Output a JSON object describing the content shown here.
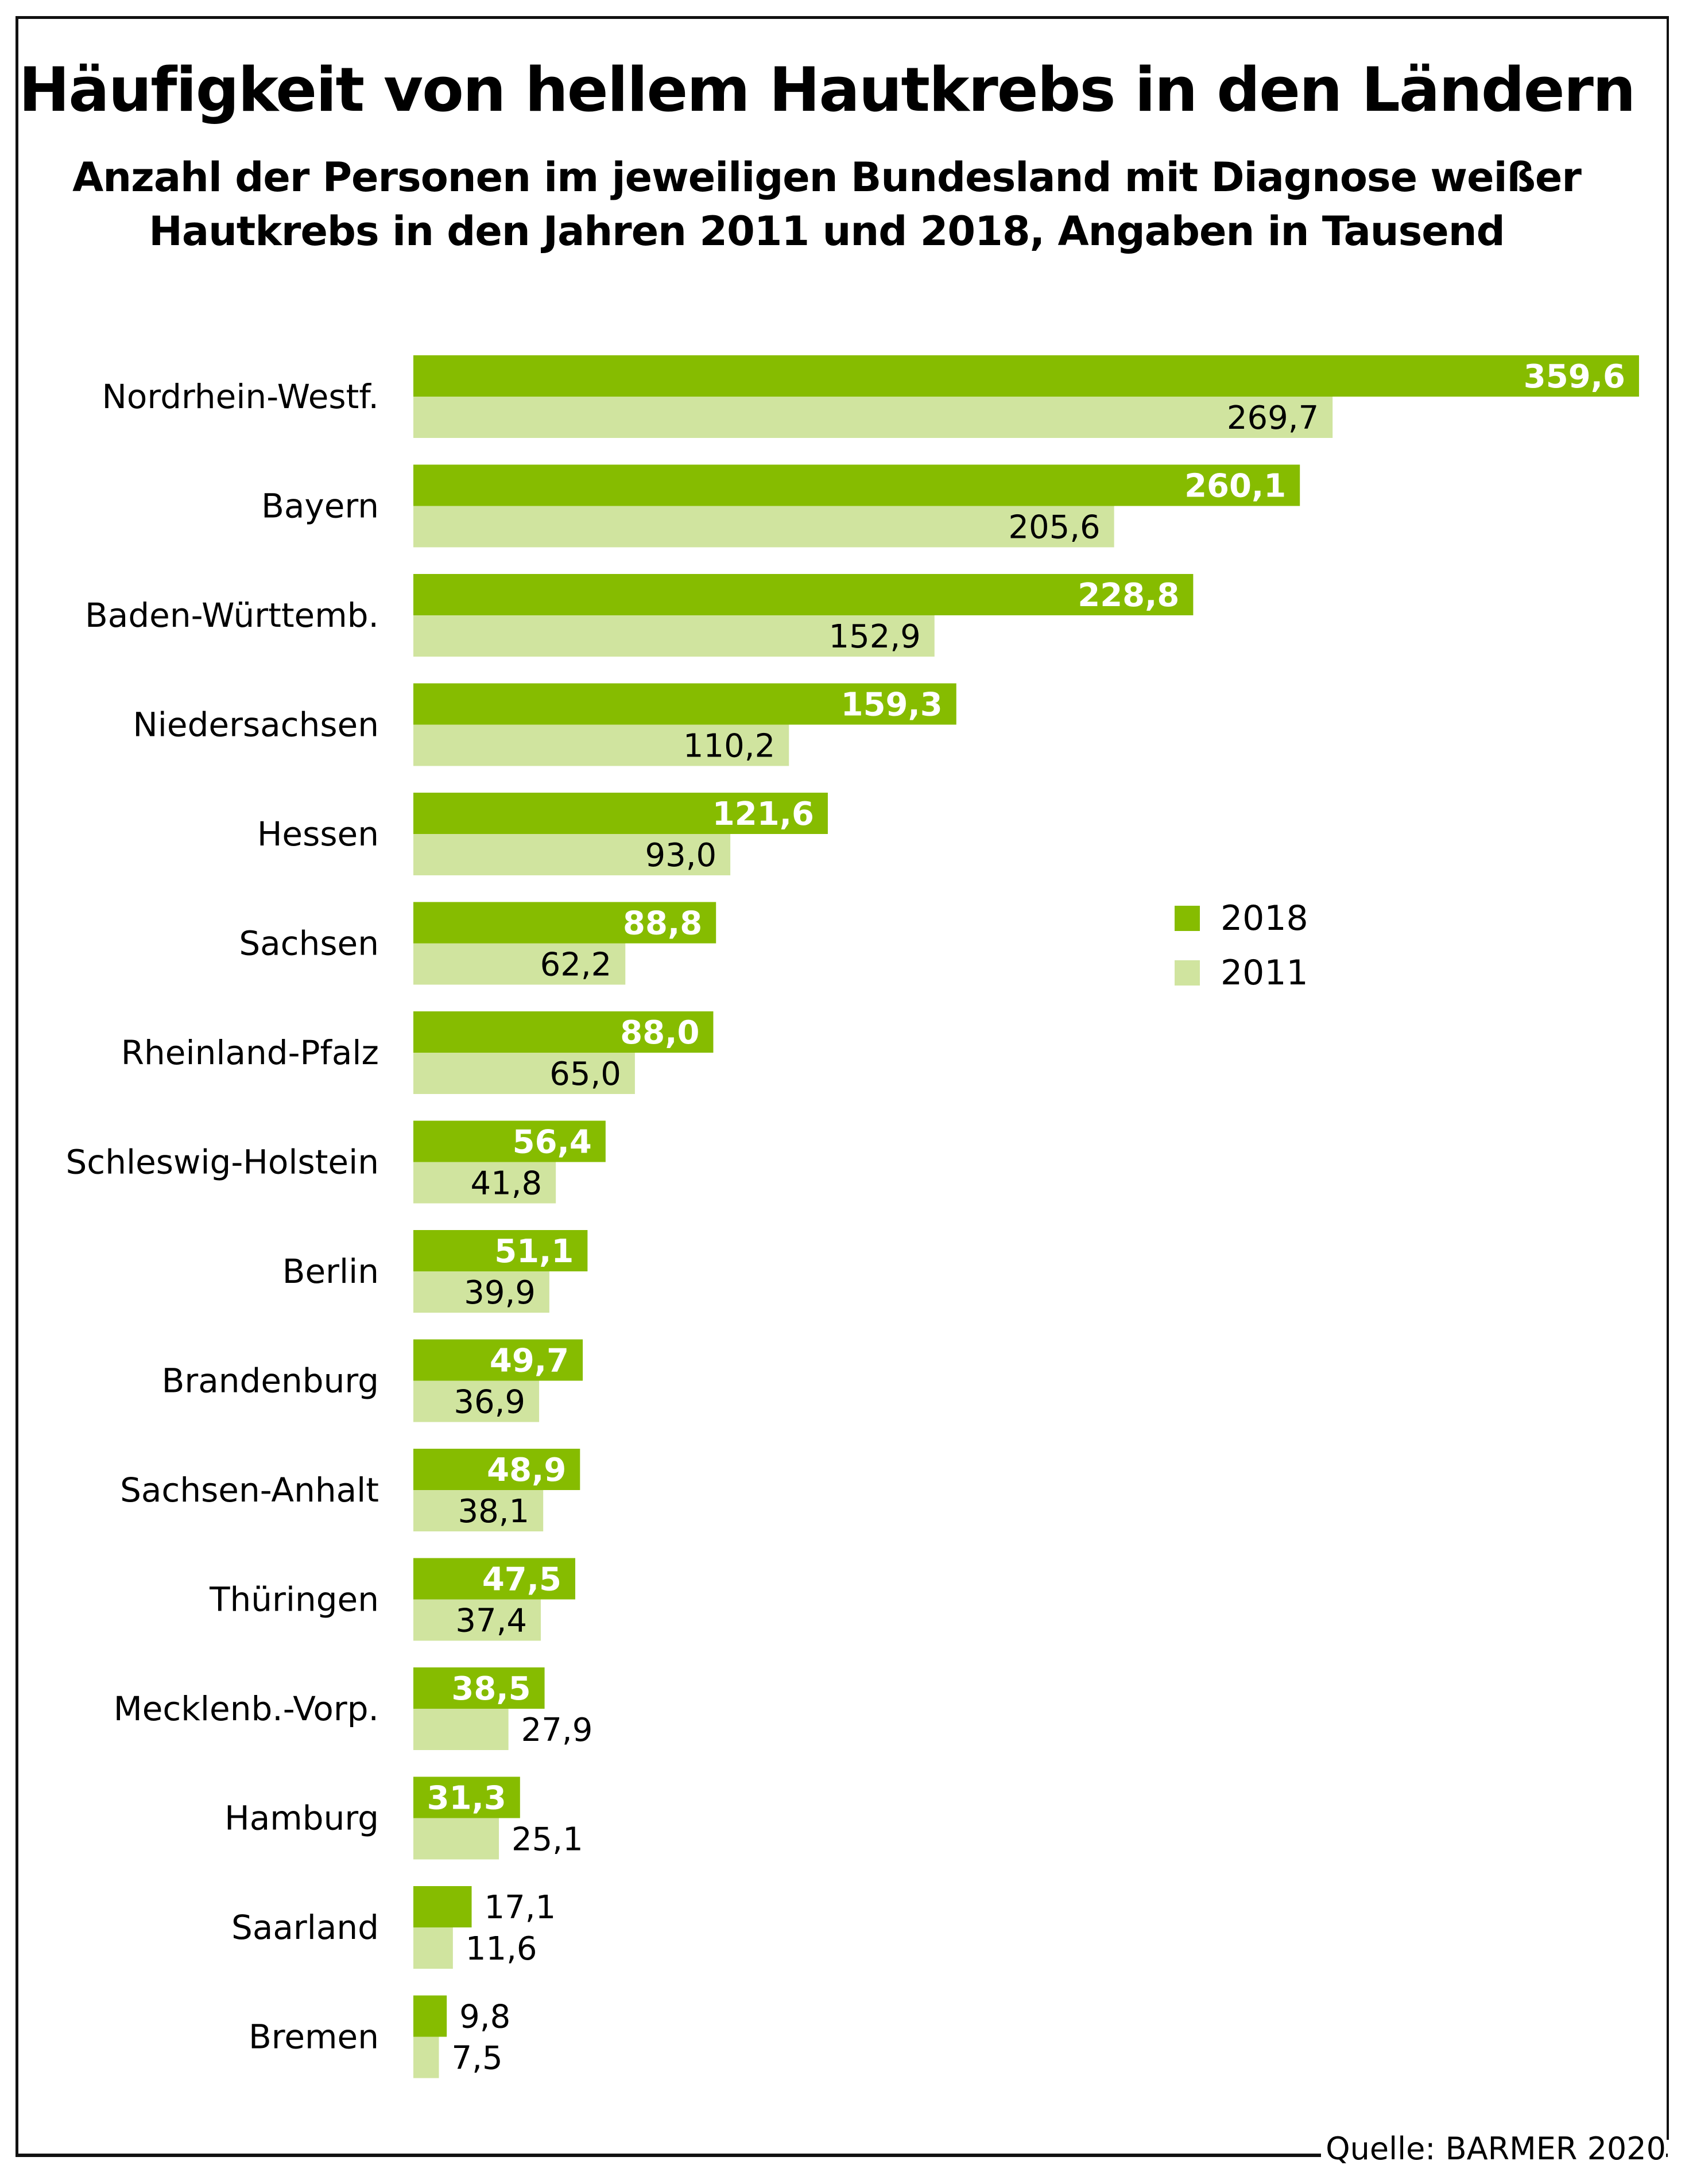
{
  "header": {
    "title": "Häufigkeit von hellem Hautkrebs in den Ländern",
    "subtitle_line1": "Anzahl der Personen im jeweiligen Bundesland mit Diagnose weißer",
    "subtitle_line2": "Hautkrebs in den Jahren 2011 und 2018, Angaben in Tausend"
  },
  "source": "Quelle: BARMER 2020",
  "colors": {
    "series_2018": "#86bc00",
    "series_2011": "#d0e49f",
    "label_on_2018": "#ffffff",
    "label_on_2011": "#000000"
  },
  "chart_data": {
    "type": "bar",
    "orientation": "horizontal",
    "title": "Häufigkeit von hellem Hautkrebs in den Ländern",
    "subtitle": "Anzahl der Personen im jeweiligen Bundesland mit Diagnose weißer Hautkrebs in den Jahren 2011 und 2018, Angaben in Tausend",
    "xlabel": "",
    "ylabel": "",
    "unit": "Tausend",
    "grid": false,
    "legend_position": "right-middle",
    "xlim": [
      0,
      360
    ],
    "categories": [
      "Nordrhein-Westf.",
      "Bayern",
      "Baden-Württemb.",
      "Niedersachsen",
      "Hessen",
      "Sachsen",
      "Rheinland-Pfalz",
      "Schleswig-Holstein",
      "Berlin",
      "Brandenburg",
      "Sachsen-Anhalt",
      "Thüringen",
      "Mecklenb.-Vorp.",
      "Hamburg",
      "Saarland",
      "Bremen"
    ],
    "series": [
      {
        "name": "2018",
        "values": [
          359.6,
          260.1,
          228.8,
          159.3,
          121.6,
          88.8,
          88.0,
          56.4,
          51.1,
          49.7,
          48.9,
          47.5,
          38.5,
          31.3,
          17.1,
          9.8
        ],
        "labels": [
          "359,6",
          "260,1",
          "228,8",
          "159,3",
          "121,6",
          "88,8",
          "88,0",
          "56,4",
          "51,1",
          "49,7",
          "48,9",
          "47,5",
          "38,5",
          "31,3",
          "17,1",
          "9,8"
        ]
      },
      {
        "name": "2011",
        "values": [
          269.7,
          205.6,
          152.9,
          110.2,
          93.0,
          62.2,
          65.0,
          41.8,
          39.9,
          36.9,
          38.1,
          37.4,
          27.9,
          25.1,
          11.6,
          7.5
        ],
        "labels": [
          "269,7",
          "205,6",
          "152,9",
          "110,2",
          "93,0",
          "62,2",
          "65,0",
          "41,8",
          "39,9",
          "36,9",
          "38,1",
          "37,4",
          "27,9",
          "25,1",
          "11,6",
          "7,5"
        ]
      }
    ],
    "legend": [
      "2018",
      "2011"
    ]
  }
}
